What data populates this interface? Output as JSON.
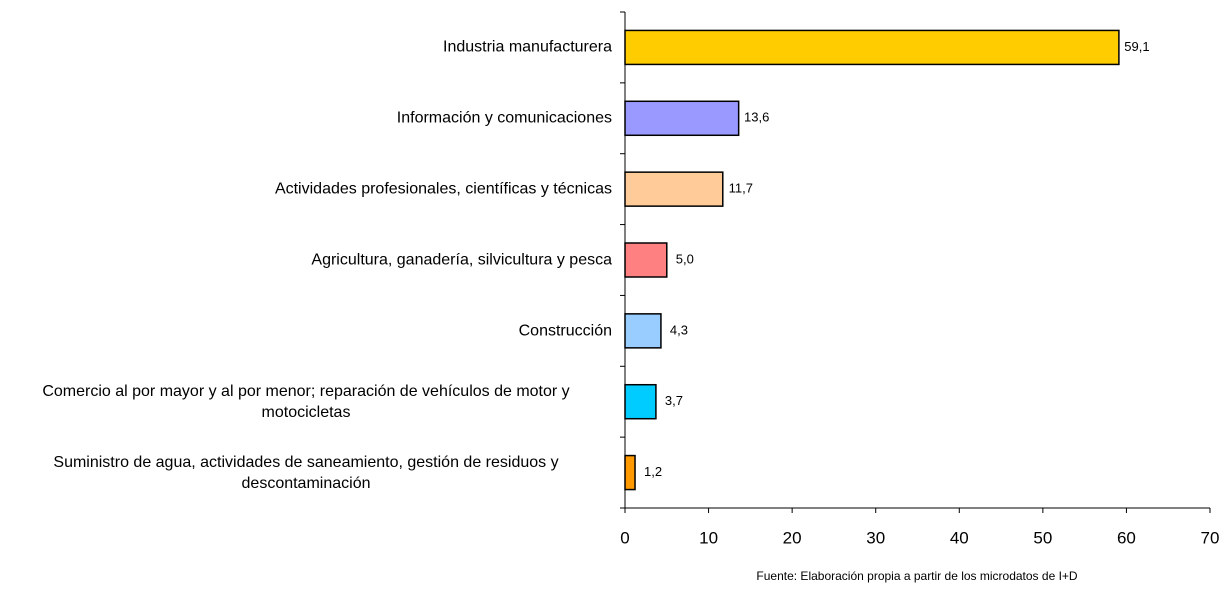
{
  "chart_data": {
    "type": "hbar",
    "categories": [
      "Industria manufacturera",
      "Información y comunicaciones",
      "Actividades profesionales, científicas y técnicas",
      "Agricultura, ganadería, silvicultura y pesca",
      "Construcción",
      "Comercio al por mayor y al por menor; reparación de vehículos de motor y motocicletas",
      "Suministro de agua, actividades de saneamiento, gestión de residuos y descontaminación"
    ],
    "values": [
      59.1,
      13.6,
      11.7,
      5.0,
      4.3,
      3.7,
      1.2
    ],
    "value_labels": [
      "59,1",
      "13,6",
      "11,7",
      "5,0",
      "4,3",
      "3,7",
      "1,2"
    ],
    "colors": [
      "#ffcc00",
      "#9999ff",
      "#ffcc99",
      "#ff8080",
      "#99ccff",
      "#00ccff",
      "#ff9900"
    ],
    "xlim": [
      0,
      70
    ],
    "xticks": [
      0,
      10,
      20,
      30,
      40,
      50,
      60,
      70
    ],
    "source": "Fuente: Elaboración propia a partir de los microdatos de I+D"
  }
}
